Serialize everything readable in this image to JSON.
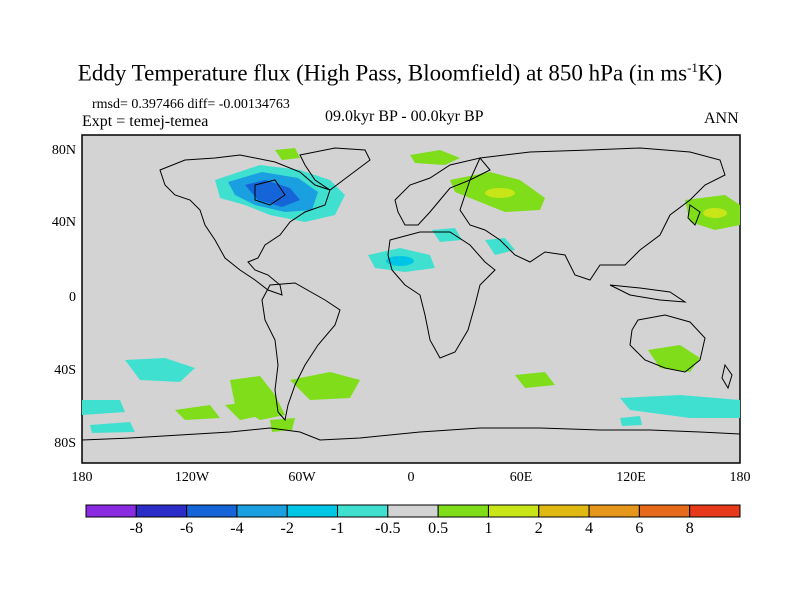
{
  "title": "Eddy Temperature flux (High Pass, Bloomfield) at 850 hPa (in ms",
  "title_sup": "-1",
  "title_end": "K)",
  "stats": "rmsd= 0.397466 diff= -0.00134763",
  "experiment": "Expt = temej-temea",
  "periods": "09.0kyr BP - 00.0kyr BP",
  "season": "ANN",
  "map": {
    "projection": "cylindrical-equidistant",
    "lon_range": [
      -180,
      180
    ],
    "lat_range": [
      -90,
      90
    ],
    "lat_labels": [
      "80N",
      "40N",
      "0",
      "40S",
      "80S"
    ],
    "lon_labels": [
      "180",
      "120W",
      "60W",
      "0",
      "60E",
      "120E",
      "180"
    ],
    "background_color": "#d3d3d3"
  },
  "colorbar": {
    "colors": [
      "#8a2be2",
      "#2c2cc9",
      "#1565d8",
      "#1a9fe0",
      "#00c6e6",
      "#40e0d0",
      "#d3d3d3",
      "#7fdd1a",
      "#c8e617",
      "#e0b812",
      "#e6961a",
      "#e66a1a",
      "#e63a1a"
    ],
    "labels": [
      "-8",
      "-6",
      "-4",
      "-2",
      "-1",
      "-0.5",
      "0.5",
      "1",
      "2",
      "4",
      "6",
      "8"
    ]
  },
  "anomaly_regions": [
    {
      "name": "north-america-negative",
      "color": "#1a9fe0"
    },
    {
      "name": "eurasia-positive",
      "color": "#7fdd1a"
    },
    {
      "name": "north-africa-negative",
      "color": "#40e0d0"
    },
    {
      "name": "southern-ocean-positive",
      "color": "#7fdd1a"
    },
    {
      "name": "south-pacific-negative",
      "color": "#40e0d0"
    }
  ]
}
